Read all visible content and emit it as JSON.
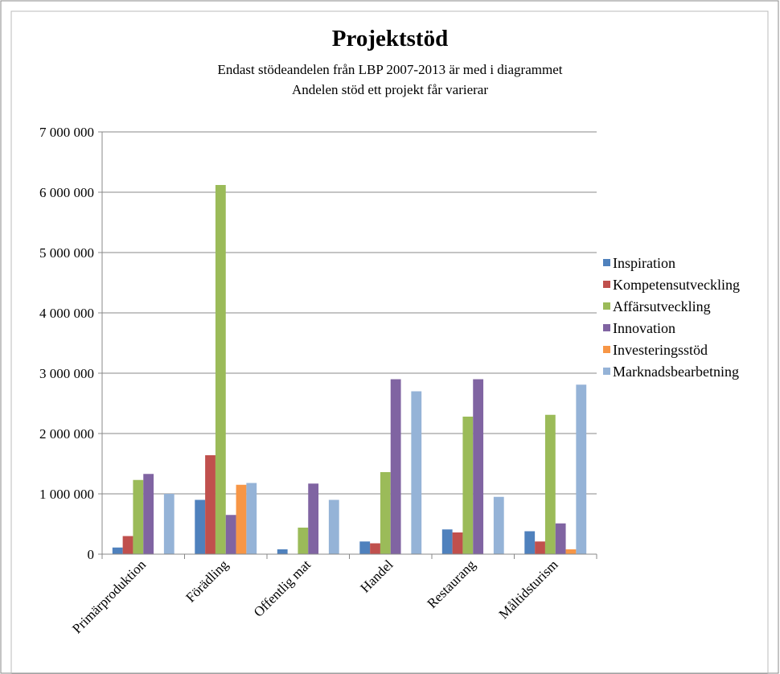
{
  "chart_data": {
    "type": "bar",
    "title": "Projektstöd",
    "subtitle": [
      "Endast stödeandelen från LBP 2007-2013 är med i diagrammet",
      "Andelen stöd ett projekt får varierar"
    ],
    "categories": [
      "Primärproduktion",
      "Förädling",
      "Offentlig mat",
      "Handel",
      "Restaurang",
      "Måltidsturism"
    ],
    "series": [
      {
        "name": "Inspiration",
        "color": "#4f81bd",
        "values": [
          110000,
          900000,
          80000,
          210000,
          410000,
          380000
        ]
      },
      {
        "name": "Kompetensutveckling",
        "color": "#c0504d",
        "values": [
          300000,
          1640000,
          0,
          180000,
          360000,
          210000
        ]
      },
      {
        "name": "Affärsutveckling",
        "color": "#9bbb59",
        "values": [
          1230000,
          6120000,
          440000,
          1360000,
          2280000,
          2310000
        ]
      },
      {
        "name": "Innovation",
        "color": "#8064a2",
        "values": [
          1330000,
          650000,
          1170000,
          2900000,
          2900000,
          510000
        ]
      },
      {
        "name": "Investeringsstöd",
        "color": "#f79646",
        "values": [
          0,
          1150000,
          0,
          0,
          0,
          80000
        ]
      },
      {
        "name": "Marknadsbearbetning",
        "color": "#95b3d7",
        "values": [
          1000000,
          1180000,
          900000,
          2700000,
          950000,
          2810000
        ]
      }
    ],
    "ylim": [
      0,
      7000000
    ],
    "yticks": [
      0,
      {
        "value": 1000000,
        "label": "1 000 000"
      },
      {
        "value": 2000000,
        "label": "2 000 000"
      },
      {
        "value": 3000000,
        "label": "3 000 000"
      },
      {
        "value": 4000000,
        "label": "4 000 000"
      },
      {
        "value": 5000000,
        "label": "5 000 000"
      },
      {
        "value": 6000000,
        "label": "6 000 000"
      },
      {
        "value": 7000000,
        "label": "7 000 000"
      }
    ],
    "grid": true,
    "legend": "right"
  }
}
